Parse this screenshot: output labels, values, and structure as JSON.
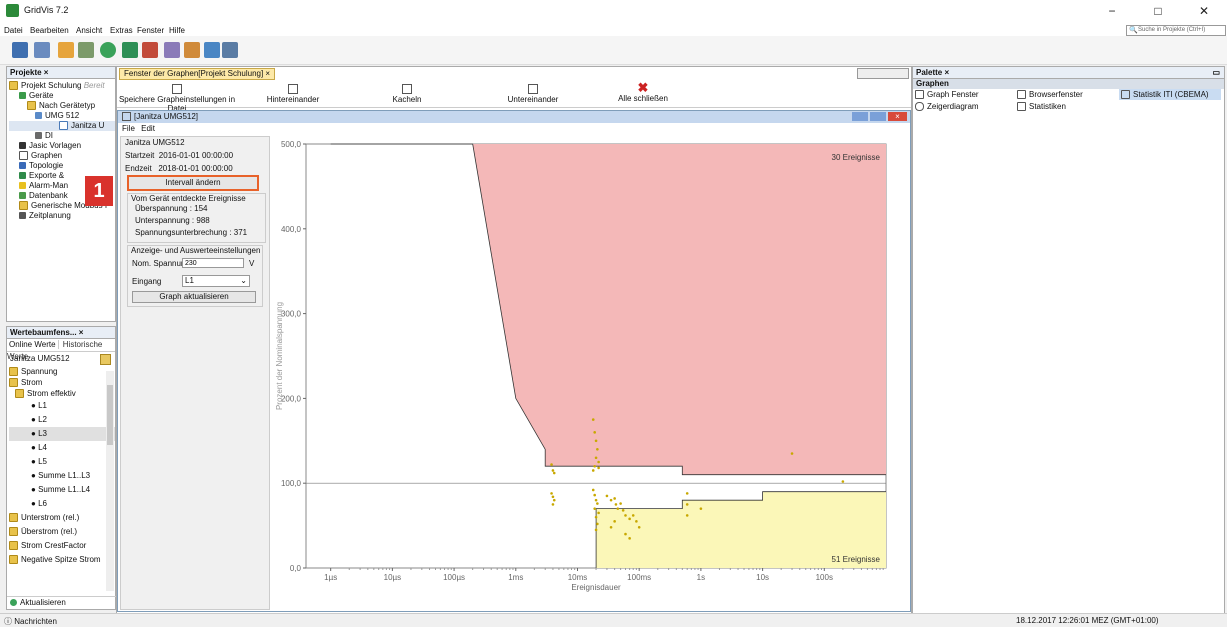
{
  "window": {
    "title": "GridVis 7.2",
    "controls": [
      "−",
      "□",
      "✕"
    ]
  },
  "menu": [
    "Datei",
    "Bearbeiten",
    "Ansicht",
    "Extras",
    "Fenster",
    "Hilfe"
  ],
  "search": {
    "placeholder": "Suche in Projekte (Ctrl+I)"
  },
  "projects": {
    "title": "Projekte ×",
    "items": [
      {
        "label": "Projekt Schulung",
        "suffix": "Bereit"
      },
      {
        "label": "Geräte"
      },
      {
        "label": "Nach Gerätetyp"
      },
      {
        "label": "UMG 512"
      },
      {
        "label": "Janitza U"
      },
      {
        "label": "DI"
      },
      {
        "label": "Jasic Vorlagen"
      },
      {
        "label": "Graphen"
      },
      {
        "label": "Topologie"
      },
      {
        "label": "Exporte &"
      },
      {
        "label": "Alarm-Man"
      },
      {
        "label": "Datenbank"
      },
      {
        "label": "Generische Modbus I"
      },
      {
        "label": "Zeitplanung"
      }
    ]
  },
  "values_panel": {
    "title": "Wertebaumfens... ×",
    "tabs": [
      "Online Werte",
      "Historische Werte"
    ],
    "device": "Janitza UMG512",
    "items": [
      {
        "label": "Spannung",
        "type": "folder"
      },
      {
        "label": "Strom",
        "type": "folder"
      },
      {
        "label": "Strom effektiv",
        "type": "folder"
      },
      {
        "label": "L1",
        "type": "dot"
      },
      {
        "label": "L2",
        "type": "dot"
      },
      {
        "label": "L3",
        "type": "dot"
      },
      {
        "label": "L4",
        "type": "dot"
      },
      {
        "label": "L5",
        "type": "dot"
      },
      {
        "label": "Summe L1..L3",
        "type": "dot"
      },
      {
        "label": "Summe L1..L4",
        "type": "dot"
      },
      {
        "label": "L6",
        "type": "dot"
      },
      {
        "label": "Unterstrom (rel.)",
        "type": "folder"
      },
      {
        "label": "Überstrom (rel.)",
        "type": "folder"
      },
      {
        "label": "Strom CrestFactor",
        "type": "folder"
      },
      {
        "label": "Negative Spitze Strom",
        "type": "folder"
      }
    ],
    "refresh": "Aktualisieren"
  },
  "graph_window": {
    "tab": "Fenster der Graphen[Projekt Schulung]",
    "toolbar": [
      "Speichere Grapheinstellungen in Datei",
      "Hintereinander",
      "Kacheln",
      "Untereinander",
      "Alle schließen"
    ],
    "inner_title": "[Janitza UMG512]",
    "inner_menu": [
      "File",
      "Edit"
    ]
  },
  "settings": {
    "device": "Janitza UMG512",
    "start_label": "Startzeit",
    "start_value": "2016-01-01 00:00:00",
    "end_label": "Endzeit",
    "end_value": "2018-01-01 00:00:00",
    "interval_button": "Intervall ändern",
    "callout": "1",
    "events_title": "Vom Gerät entdeckte Ereignisse",
    "overvoltage": "Überspannung : 154",
    "undervoltage": "Unterspannung : 988",
    "interruption": "Spannungsunterbrechung : 371",
    "display_title": "Anzeige- und Auswerteeinstellungen",
    "nom_label": "Nom. Spannung",
    "nom_value": "230",
    "nom_unit": "V",
    "input_label": "Eingang",
    "input_value": "L1",
    "update_button": "Graph aktualisieren"
  },
  "palette": {
    "title": "Palette ×",
    "section": "Graphen",
    "items": [
      "Graph Fenster",
      "Browserfenster",
      "Statistik ITI (CBEMA)",
      "Zeigerdiagram",
      "Statistiken"
    ]
  },
  "status": {
    "messages": "Nachrichten",
    "datetime": "18.12.2017 12:26:01 MEZ (GMT+01:00)"
  },
  "chart_data": {
    "type": "scatter",
    "xlabel": "Ereignisdauer",
    "ylabel": "Prozent der Nominalspannung",
    "x_ticks": [
      "1µs",
      "10µs",
      "100µs",
      "1ms",
      "10ms",
      "100ms",
      "1s",
      "10s",
      "100s"
    ],
    "y_ticks": [
      "0,0",
      "100,0",
      "200,0",
      "300,0",
      "400,0",
      "500,0"
    ],
    "ylim": [
      0,
      500
    ],
    "upper_label": "30 Ereignisse",
    "lower_label": "51 Ereignisse",
    "colors": {
      "upper_zone": "#f4b8b8",
      "lower_zone": "#fbf7b8",
      "points": "#c8a800"
    },
    "upper_boundary": [
      [
        1e-06,
        500
      ],
      [
        0.0002,
        500
      ],
      [
        0.001,
        200
      ],
      [
        0.003,
        140
      ],
      [
        0.003,
        120
      ],
      [
        0.5,
        120
      ],
      [
        0.5,
        110
      ],
      [
        1000,
        110
      ]
    ],
    "lower_boundary": [
      [
        0.02,
        0
      ],
      [
        0.02,
        70
      ],
      [
        0.5,
        70
      ],
      [
        0.5,
        80
      ],
      [
        10,
        80
      ],
      [
        10,
        90
      ],
      [
        1000,
        90
      ]
    ],
    "points": [
      [
        0.0038,
        122
      ],
      [
        0.004,
        115
      ],
      [
        0.0042,
        112
      ],
      [
        0.018,
        175
      ],
      [
        0.019,
        160
      ],
      [
        0.02,
        150
      ],
      [
        0.021,
        140
      ],
      [
        0.02,
        130
      ],
      [
        0.022,
        125
      ],
      [
        0.019,
        120
      ],
      [
        0.018,
        115
      ],
      [
        0.022,
        118
      ],
      [
        30,
        135
      ],
      [
        0.0038,
        88
      ],
      [
        0.004,
        84
      ],
      [
        0.0042,
        80
      ],
      [
        0.004,
        75
      ],
      [
        0.018,
        92
      ],
      [
        0.019,
        86
      ],
      [
        0.02,
        80
      ],
      [
        0.021,
        76
      ],
      [
        0.019,
        70
      ],
      [
        0.022,
        65
      ],
      [
        0.02,
        60
      ],
      [
        0.021,
        52
      ],
      [
        0.02,
        45
      ],
      [
        0.03,
        85
      ],
      [
        0.035,
        80
      ],
      [
        0.04,
        82
      ],
      [
        0.042,
        75
      ],
      [
        0.045,
        70
      ],
      [
        0.05,
        76
      ],
      [
        0.055,
        68
      ],
      [
        0.06,
        62
      ],
      [
        0.04,
        55
      ],
      [
        0.035,
        48
      ],
      [
        0.06,
        40
      ],
      [
        0.07,
        35
      ],
      [
        0.08,
        62
      ],
      [
        0.09,
        55
      ],
      [
        0.1,
        48
      ],
      [
        0.07,
        58
      ],
      [
        0.6,
        88
      ],
      [
        0.6,
        75
      ],
      [
        1.0,
        70
      ],
      [
        0.6,
        62
      ],
      [
        200,
        102
      ]
    ]
  }
}
